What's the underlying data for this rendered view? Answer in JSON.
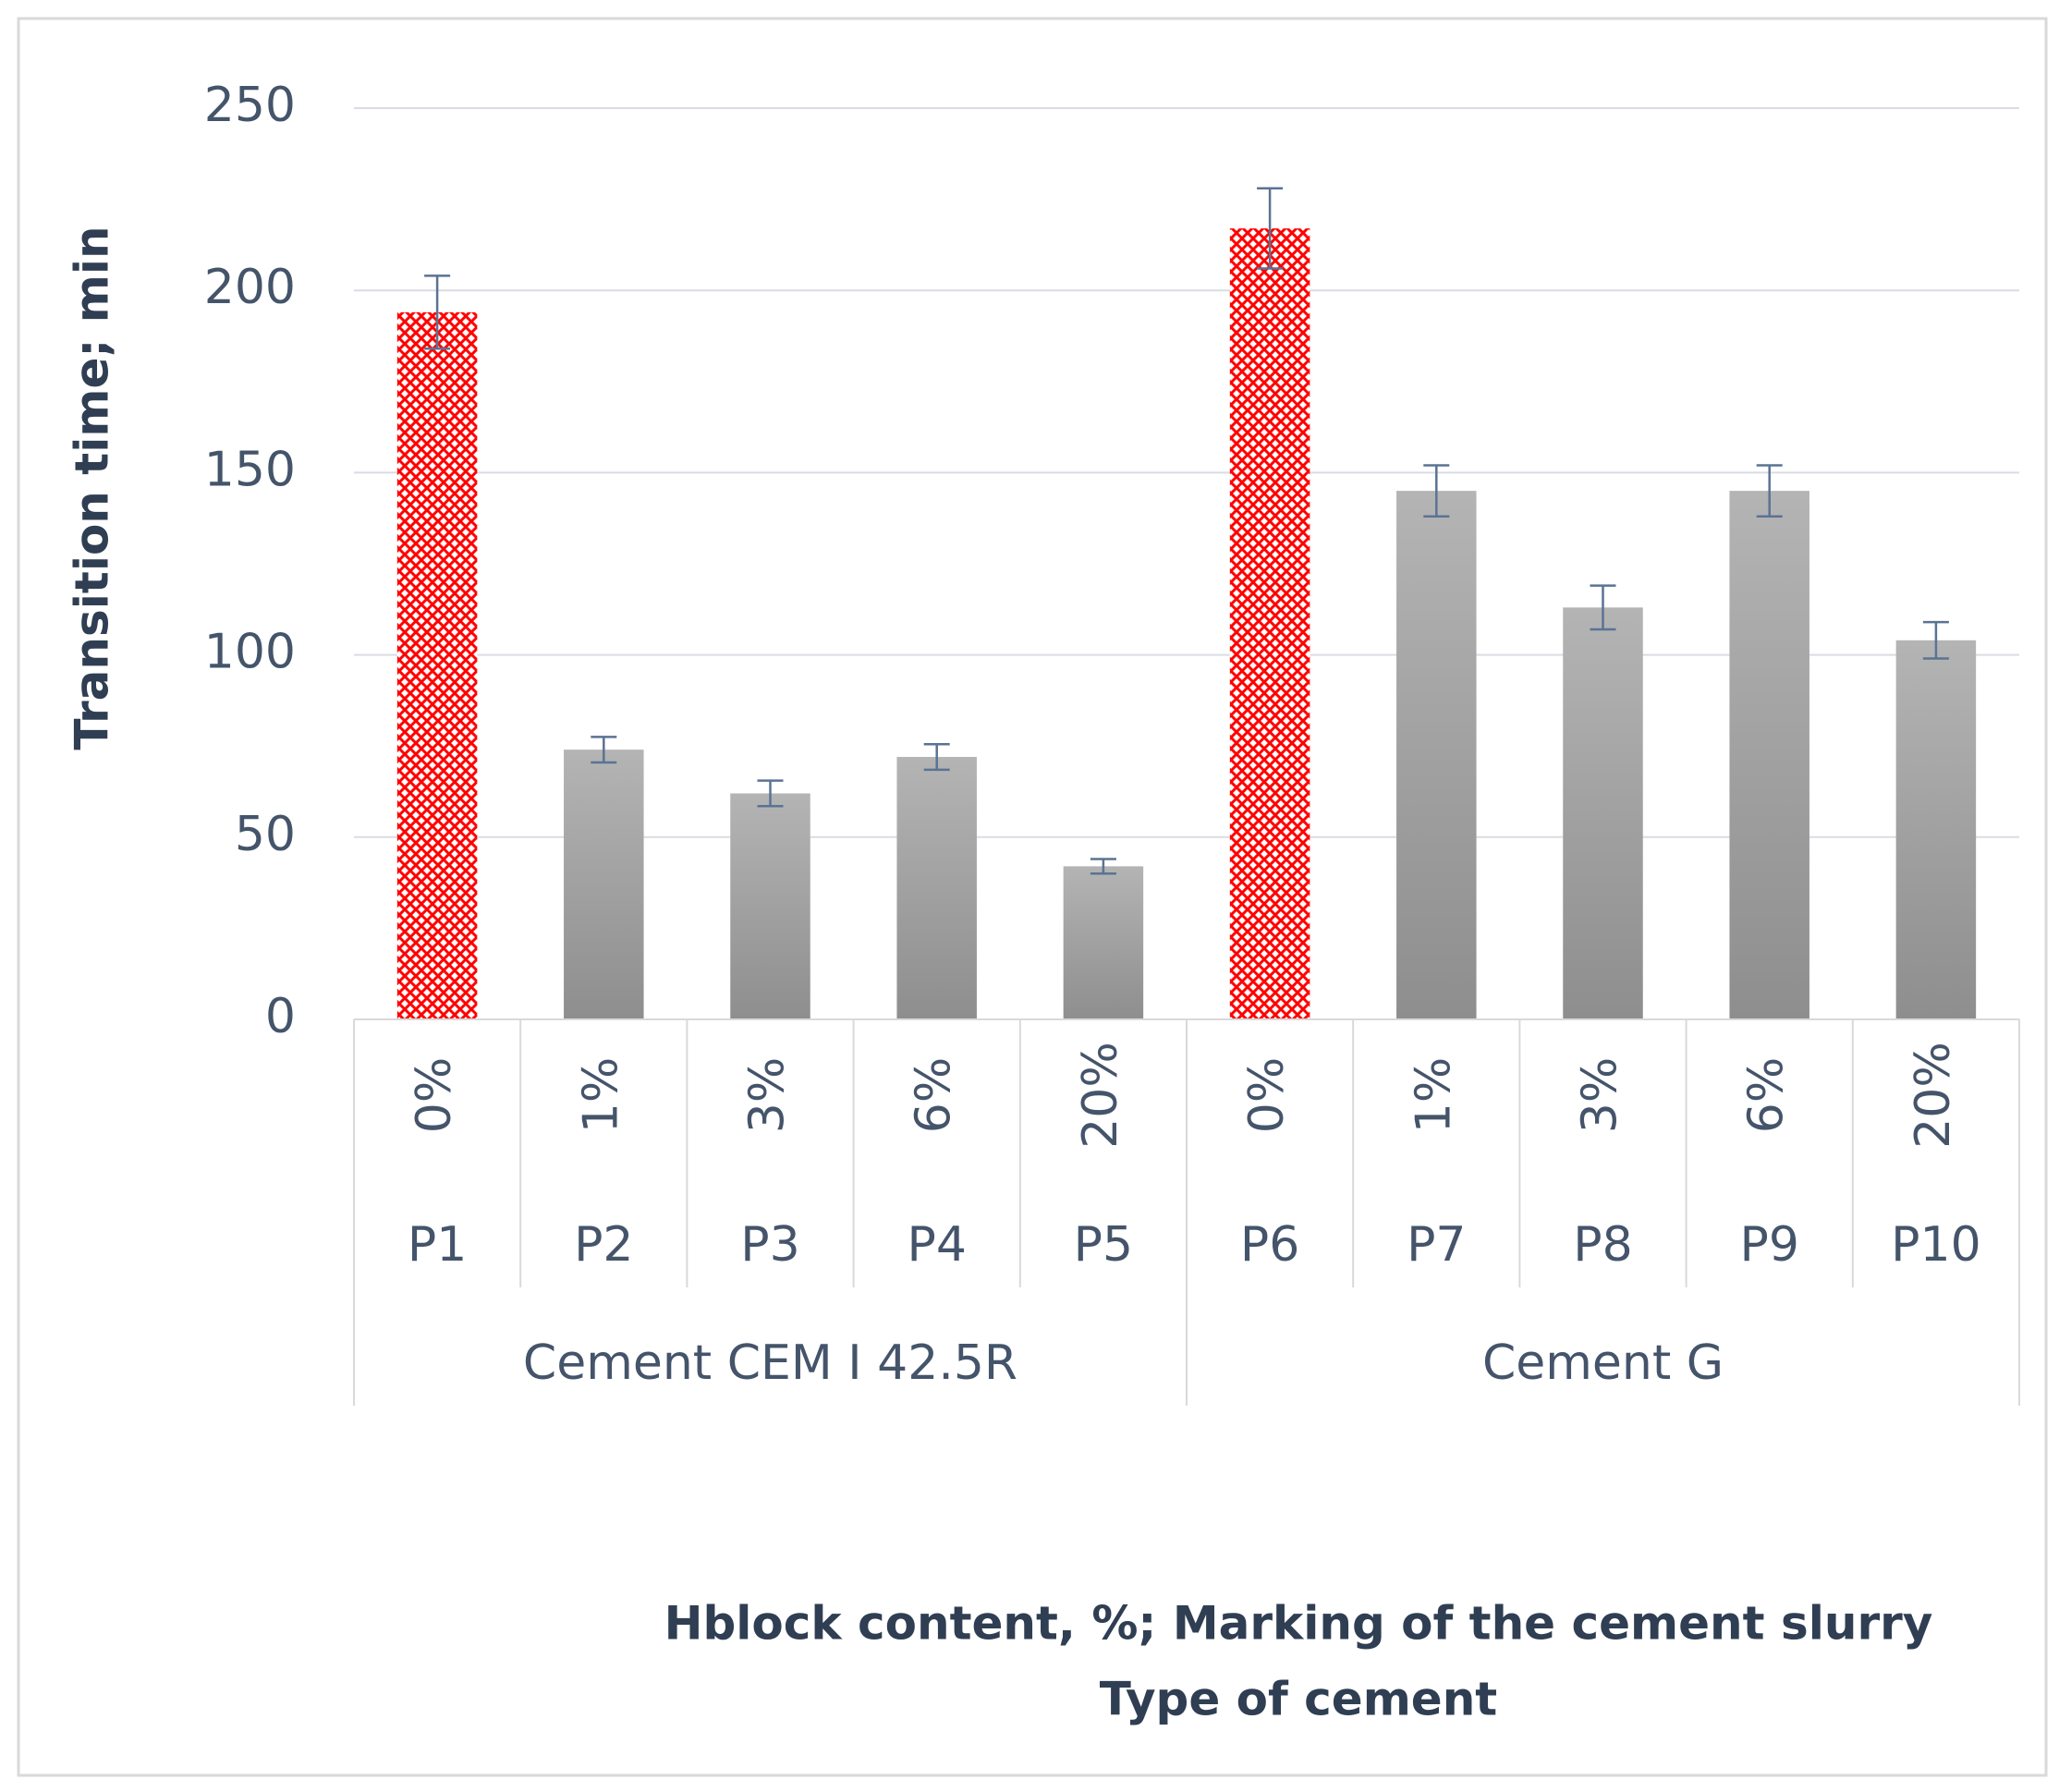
{
  "chart_data": {
    "type": "bar",
    "y_axis_title": "Transition time; min",
    "x_axis_title": "Hblock content, %; Marking of the cement slurry",
    "x_axis_title_2": "Type of cement",
    "categories": [
      "P1",
      "P2",
      "P3",
      "P4",
      "P5",
      "P6",
      "P7",
      "P8",
      "P9",
      "P10"
    ],
    "percent_labels": [
      "0%",
      "1%",
      "3%",
      "6%",
      "20%",
      "0%",
      "1%",
      "3%",
      "6%",
      "20%"
    ],
    "groups": [
      {
        "label": "Cement CEM I 42.5R",
        "categories": [
          "P1",
          "P2",
          "P3",
          "P4",
          "P5"
        ]
      },
      {
        "label": "Cement G",
        "categories": [
          "P6",
          "P7",
          "P8",
          "P9",
          "P10"
        ]
      }
    ],
    "values": [
      194,
      74,
      62,
      72,
      42,
      217,
      145,
      113,
      145,
      104
    ],
    "errors": [
      10,
      3.5,
      3.5,
      3.5,
      2,
      11,
      7,
      6,
      7,
      5
    ],
    "hatched": [
      true,
      false,
      false,
      false,
      false,
      true,
      false,
      false,
      false,
      false
    ],
    "color": "#a6a6a6",
    "hatch_color": "#ff0000",
    "error_color": "#5a7394",
    "ylim": [
      0,
      250
    ],
    "yticks": [
      0,
      50,
      100,
      150,
      200,
      250
    ],
    "grid": true
  }
}
